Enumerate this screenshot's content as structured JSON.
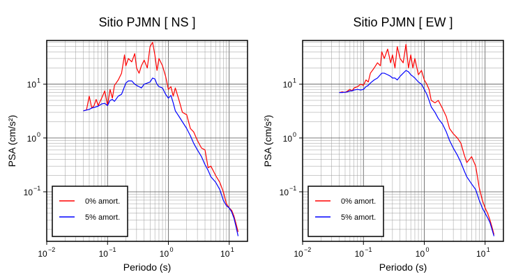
{
  "chart_data": [
    {
      "type": "line",
      "title": "Sitio PJMN [ NS ]",
      "xlabel": "Periodo (s)",
      "ylabel": "PSA (cm/s²)",
      "xscale": "log",
      "yscale": "log",
      "xlim": [
        0.01,
        20
      ],
      "ylim": [
        0.012,
        65
      ],
      "grid": true,
      "legend_position": "bottom-left",
      "x_ticks": [
        {
          "value": 0.01,
          "base": "10",
          "exp": "−2"
        },
        {
          "value": 0.1,
          "base": "10",
          "exp": "−1"
        },
        {
          "value": 1,
          "base": "10",
          "exp": "0"
        },
        {
          "value": 10,
          "base": "10",
          "exp": "1"
        }
      ],
      "y_ticks": [
        {
          "value": 0.1,
          "base": "10",
          "exp": "−1"
        },
        {
          "value": 1,
          "base": "10",
          "exp": "0"
        },
        {
          "value": 10,
          "base": "10",
          "exp": "1"
        }
      ],
      "series": [
        {
          "name": "0% amort.",
          "color": "#ff0000",
          "x": [
            0.04,
            0.045,
            0.05,
            0.055,
            0.06,
            0.065,
            0.07,
            0.08,
            0.09,
            0.1,
            0.11,
            0.12,
            0.13,
            0.15,
            0.17,
            0.19,
            0.2,
            0.22,
            0.25,
            0.28,
            0.3,
            0.33,
            0.36,
            0.4,
            0.45,
            0.5,
            0.55,
            0.6,
            0.65,
            0.7,
            0.8,
            0.9,
            1.0,
            1.1,
            1.2,
            1.3,
            1.5,
            1.7,
            2.0,
            2.3,
            2.6,
            3.0,
            3.5,
            4.0,
            4.5,
            5.0,
            6.0,
            7.0,
            8.0,
            9.0,
            10.0,
            11.0,
            12.0,
            13.0,
            14.0
          ],
          "y": [
            3.2,
            3.3,
            6.0,
            3.6,
            4.0,
            5.2,
            4.0,
            5.5,
            7.5,
            4.0,
            8.0,
            5.5,
            9.5,
            12.0,
            16.0,
            35.0,
            22.0,
            30.0,
            26.0,
            37.0,
            20.0,
            16.0,
            22.0,
            28.0,
            20.0,
            50.0,
            60.0,
            35.0,
            18.0,
            30.0,
            22.0,
            14.0,
            8.0,
            9.0,
            6.0,
            8.5,
            5.0,
            3.0,
            2.7,
            1.5,
            1.3,
            0.9,
            0.65,
            0.6,
            0.28,
            0.3,
            0.2,
            0.15,
            0.1,
            0.06,
            0.05,
            0.045,
            0.035,
            0.025,
            0.018
          ]
        },
        {
          "name": "5% amort.",
          "color": "#0000ff",
          "x": [
            0.04,
            0.045,
            0.05,
            0.055,
            0.06,
            0.065,
            0.07,
            0.08,
            0.09,
            0.1,
            0.11,
            0.12,
            0.13,
            0.15,
            0.17,
            0.19,
            0.2,
            0.22,
            0.25,
            0.28,
            0.3,
            0.33,
            0.36,
            0.4,
            0.45,
            0.5,
            0.55,
            0.6,
            0.65,
            0.7,
            0.8,
            0.9,
            1.0,
            1.1,
            1.2,
            1.3,
            1.5,
            1.7,
            2.0,
            2.3,
            2.6,
            3.0,
            3.5,
            4.0,
            4.5,
            5.0,
            6.0,
            7.0,
            8.0,
            9.0,
            10.0,
            11.0,
            12.0,
            13.0,
            14.0
          ],
          "y": [
            3.2,
            3.3,
            3.4,
            3.6,
            3.7,
            3.8,
            3.9,
            4.3,
            4.4,
            4.0,
            5.0,
            5.2,
            4.8,
            6.0,
            6.5,
            9.0,
            10.5,
            11.5,
            11.5,
            10.0,
            9.5,
            9.0,
            8.5,
            10.0,
            10.5,
            11.0,
            13.0,
            12.5,
            10.0,
            9.0,
            8.5,
            6.5,
            5.5,
            6.2,
            4.5,
            3.2,
            2.5,
            2.0,
            1.5,
            1.1,
            0.8,
            0.6,
            0.45,
            0.32,
            0.25,
            0.19,
            0.15,
            0.11,
            0.07,
            0.055,
            0.05,
            0.042,
            0.032,
            0.022,
            0.015
          ]
        }
      ]
    },
    {
      "type": "line",
      "title": "Sitio PJMN [ EW ]",
      "xlabel": "Periodo (s)",
      "ylabel": "PSA (cm/s²)",
      "xscale": "log",
      "yscale": "log",
      "xlim": [
        0.01,
        20
      ],
      "ylim": [
        0.012,
        65
      ],
      "grid": true,
      "legend_position": "bottom-left",
      "x_ticks": [
        {
          "value": 0.01,
          "base": "10",
          "exp": "−2"
        },
        {
          "value": 0.1,
          "base": "10",
          "exp": "−1"
        },
        {
          "value": 1,
          "base": "10",
          "exp": "0"
        },
        {
          "value": 10,
          "base": "10",
          "exp": "1"
        }
      ],
      "y_ticks": [
        {
          "value": 0.1,
          "base": "10",
          "exp": "−1"
        },
        {
          "value": 1,
          "base": "10",
          "exp": "0"
        },
        {
          "value": 10,
          "base": "10",
          "exp": "1"
        }
      ],
      "series": [
        {
          "name": "0% amort.",
          "color": "#ff0000",
          "x": [
            0.04,
            0.045,
            0.05,
            0.055,
            0.06,
            0.065,
            0.07,
            0.08,
            0.09,
            0.1,
            0.11,
            0.12,
            0.13,
            0.15,
            0.17,
            0.19,
            0.2,
            0.22,
            0.25,
            0.28,
            0.3,
            0.33,
            0.36,
            0.4,
            0.45,
            0.5,
            0.55,
            0.6,
            0.65,
            0.7,
            0.8,
            0.9,
            1.0,
            1.1,
            1.2,
            1.3,
            1.5,
            1.7,
            2.0,
            2.3,
            2.6,
            3.0,
            3.5,
            4.0,
            4.5,
            5.0,
            6.0,
            7.0,
            8.0,
            9.0,
            10.0,
            11.0,
            12.0,
            13.0,
            14.0
          ],
          "y": [
            7.0,
            7.2,
            7.0,
            7.5,
            8.0,
            7.5,
            8.5,
            9.0,
            10.0,
            9.5,
            12.0,
            11.0,
            16.0,
            20.0,
            25.0,
            22.0,
            40.0,
            30.0,
            45.0,
            25.0,
            35.0,
            20.0,
            50.0,
            30.0,
            25.0,
            55.0,
            20.0,
            35.0,
            20.0,
            30.0,
            15.0,
            18.0,
            12.0,
            10.0,
            8.0,
            5.0,
            4.5,
            5.0,
            3.5,
            2.5,
            1.5,
            1.2,
            1.0,
            0.8,
            0.5,
            0.35,
            0.45,
            0.3,
            0.12,
            0.07,
            0.05,
            0.04,
            0.03,
            0.022,
            0.016
          ]
        },
        {
          "name": "5% amort.",
          "color": "#0000ff",
          "x": [
            0.04,
            0.045,
            0.05,
            0.055,
            0.06,
            0.065,
            0.07,
            0.08,
            0.09,
            0.1,
            0.11,
            0.12,
            0.13,
            0.15,
            0.17,
            0.19,
            0.2,
            0.22,
            0.25,
            0.28,
            0.3,
            0.33,
            0.36,
            0.4,
            0.45,
            0.5,
            0.55,
            0.6,
            0.65,
            0.7,
            0.8,
            0.9,
            1.0,
            1.1,
            1.2,
            1.3,
            1.5,
            1.7,
            2.0,
            2.3,
            2.6,
            3.0,
            3.5,
            4.0,
            4.5,
            5.0,
            6.0,
            7.0,
            8.0,
            9.0,
            10.0,
            11.0,
            12.0,
            13.0,
            14.0
          ],
          "y": [
            7.0,
            7.0,
            7.1,
            7.2,
            7.5,
            7.5,
            7.8,
            8.0,
            7.8,
            8.0,
            9.0,
            9.5,
            10.5,
            12.0,
            13.0,
            15.0,
            16.0,
            16.0,
            15.0,
            14.0,
            13.0,
            13.0,
            12.0,
            14.0,
            16.0,
            18.0,
            17.0,
            15.0,
            14.0,
            13.0,
            11.0,
            10.0,
            8.0,
            6.5,
            5.0,
            3.8,
            3.0,
            2.3,
            1.8,
            1.3,
            0.9,
            0.65,
            0.48,
            0.35,
            0.25,
            0.19,
            0.14,
            0.11,
            0.07,
            0.05,
            0.04,
            0.033,
            0.027,
            0.02,
            0.015
          ]
        }
      ]
    }
  ]
}
